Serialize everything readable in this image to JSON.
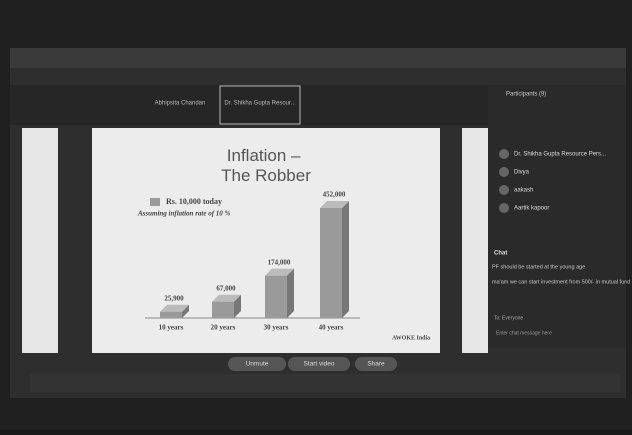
{
  "video_strip": {
    "names": [
      "Abhipsita Chandan",
      "Dr. Shikha Gupta Resour..."
    ]
  },
  "slide": {
    "title": "Inflation – The Robber",
    "legend": "Rs. 10,000 today",
    "note": "Assuming inflation rate of 10 %",
    "brand": "AWOKE India",
    "chart": {
      "type": "bar",
      "categories": [
        "10 years",
        "20 years",
        "30 years",
        "40 years"
      ],
      "values": [
        25900,
        67000,
        174000,
        452000
      ],
      "value_labels": [
        "25,900",
        "67,000",
        "174,000",
        "452,000"
      ],
      "color": "#9a9a9a"
    }
  },
  "participants": {
    "title": "Participants (9)",
    "names": [
      "Dr. Shikha Gupta Resource Pers...",
      "Divya",
      "aakash",
      "Aartik kapoor"
    ]
  },
  "chat": {
    "title": "Chat",
    "messages": [
      "PF should be started at the young age",
      "ma'am we can start investment from 500/- in mutual fund"
    ],
    "to": "To: Everyone",
    "placeholder": "Enter chat message here"
  },
  "toolbar": {
    "buttons": [
      "Unmute",
      "Start video",
      "Share"
    ]
  }
}
